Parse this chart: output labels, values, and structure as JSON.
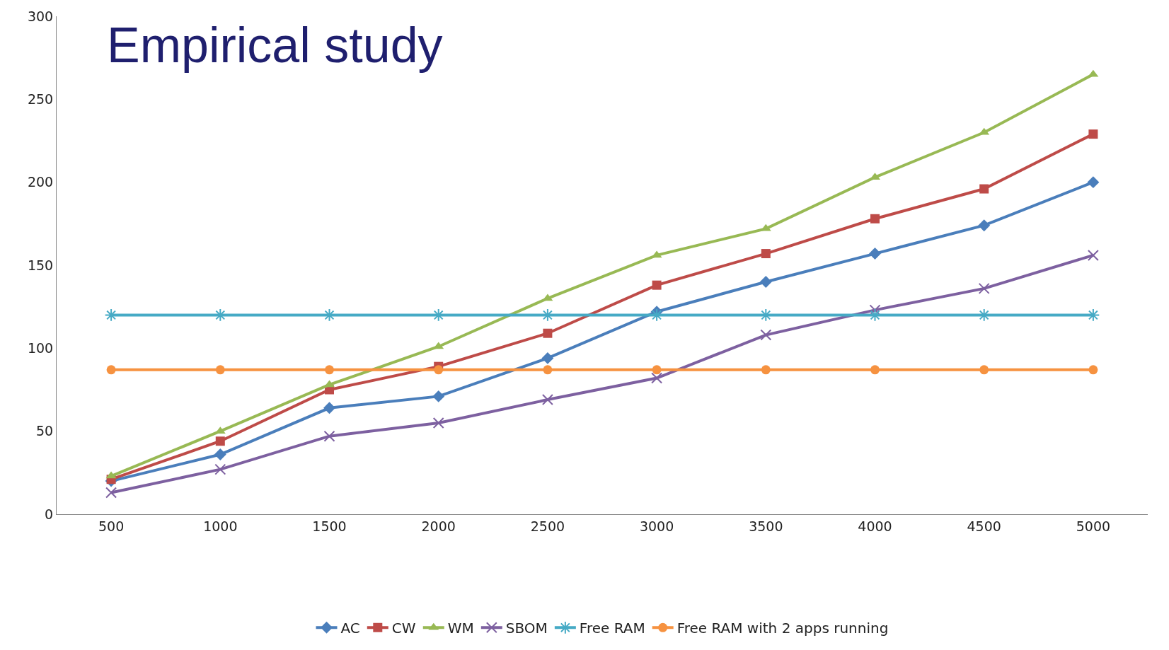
{
  "chart_data": {
    "type": "line",
    "title": "Empirical study",
    "categories": [
      "500",
      "1000",
      "1500",
      "2000",
      "2500",
      "3000",
      "3500",
      "4000",
      "4500",
      "5000"
    ],
    "series": [
      {
        "name": "AC",
        "color": "#4a7ebb",
        "marker": "diamond",
        "values": [
          20,
          36,
          64,
          71,
          94,
          122,
          140,
          157,
          174,
          200
        ]
      },
      {
        "name": "CW",
        "color": "#be4b48",
        "marker": "square",
        "values": [
          21,
          44,
          75,
          89,
          109,
          138,
          157,
          178,
          196,
          229
        ]
      },
      {
        "name": "WM",
        "color": "#98b954",
        "marker": "triangle",
        "values": [
          23,
          50,
          78,
          101,
          130,
          156,
          172,
          203,
          230,
          265
        ]
      },
      {
        "name": "SBOM",
        "color": "#7d60a0",
        "marker": "cross",
        "values": [
          13,
          27,
          47,
          55,
          69,
          82,
          108,
          123,
          136,
          156
        ]
      },
      {
        "name": "Free RAM",
        "color": "#46aac5",
        "marker": "cross",
        "values": [
          120,
          120,
          120,
          120,
          120,
          120,
          120,
          120,
          120,
          120
        ]
      },
      {
        "name": "Free RAM with 2 apps running",
        "color": "#f69240",
        "marker": "circle",
        "values": [
          87,
          87,
          87,
          87,
          87,
          87,
          87,
          87,
          87,
          87
        ]
      }
    ],
    "ylim": [
      0,
      300
    ],
    "yticks": [
      0,
      50,
      100,
      150,
      200,
      250,
      300
    ],
    "legend": "bottom",
    "line_style": "solid"
  }
}
